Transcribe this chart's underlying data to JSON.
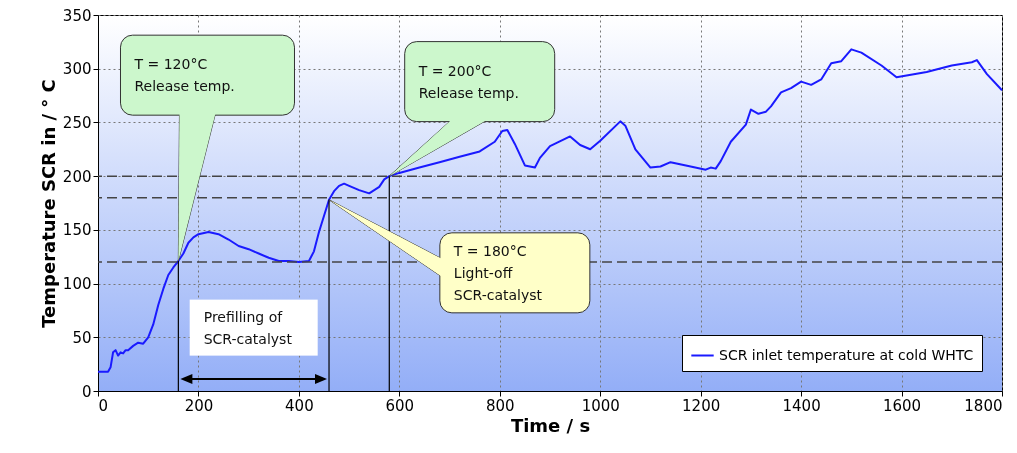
{
  "chart_data": {
    "type": "line",
    "xlabel": "Time / s",
    "ylabel": "Temperature SCR in / ° C",
    "xlim": [
      0,
      1800
    ],
    "xticks": [
      0,
      200,
      400,
      600,
      800,
      1000,
      1200,
      1400,
      1600,
      1800
    ],
    "ylim": [
      0,
      350
    ],
    "yticks": [
      0,
      50,
      100,
      150,
      200,
      250,
      300,
      350
    ],
    "grid": true,
    "legend": "bottom right",
    "marker": "none",
    "line_style": "solid",
    "series": [
      {
        "name": "SCR inlet temperature at cold WHTC",
        "color": "#1a1aff",
        "x": [
          0,
          20,
          25,
          30,
          35,
          40,
          45,
          50,
          55,
          60,
          70,
          80,
          90,
          100,
          110,
          120,
          130,
          140,
          150,
          160,
          170,
          180,
          190,
          200,
          220,
          240,
          260,
          280,
          300,
          320,
          340,
          360,
          380,
          400,
          420,
          430,
          440,
          460,
          470,
          480,
          490,
          500,
          520,
          540,
          560,
          570,
          580,
          600,
          640,
          680,
          720,
          760,
          790,
          805,
          815,
          830,
          850,
          870,
          880,
          900,
          940,
          960,
          980,
          1000,
          1040,
          1050,
          1070,
          1100,
          1120,
          1140,
          1180,
          1210,
          1220,
          1230,
          1240,
          1260,
          1290,
          1300,
          1315,
          1330,
          1340,
          1360,
          1380,
          1400,
          1420,
          1440,
          1460,
          1480,
          1500,
          1520,
          1560,
          1590,
          1650,
          1700,
          1740,
          1750,
          1770,
          1800
        ],
        "values": [
          18,
          18,
          22,
          36,
          38,
          33,
          36,
          35,
          38,
          38,
          42,
          45,
          44,
          50,
          62,
          80,
          95,
          108,
          115,
          121,
          128,
          138,
          143,
          146,
          148,
          146,
          141,
          135,
          132,
          128,
          124,
          121,
          121,
          120,
          121,
          130,
          148,
          178,
          186,
          191,
          193,
          191,
          187,
          184,
          190,
          197,
          200,
          203,
          208,
          213,
          218,
          223,
          232,
          242,
          243,
          230,
          210,
          208,
          217,
          228,
          237,
          229,
          225,
          233,
          251,
          247,
          225,
          208,
          209,
          213,
          209,
          206,
          208,
          207,
          214,
          232,
          248,
          262,
          258,
          260,
          265,
          278,
          282,
          288,
          285,
          290,
          305,
          307,
          318,
          315,
          303,
          292,
          297,
          303,
          306,
          308,
          295,
          280
        ]
      }
    ],
    "ref_lines": [
      {
        "axis": "y",
        "value": 120,
        "color": "#444444",
        "line_style": "dashed"
      },
      {
        "axis": "y",
        "value": 180,
        "color": "#444444",
        "line_style": "dashed"
      },
      {
        "axis": "y",
        "value": 200,
        "color": "#444444",
        "line_style": "dashed"
      },
      {
        "axis": "x",
        "value": 160,
        "color": "#000000",
        "line_style": "solid"
      },
      {
        "axis": "x",
        "value": 460,
        "color": "#000000",
        "line_style": "solid"
      },
      {
        "axis": "x",
        "value": 580,
        "color": "#000000",
        "line_style": "solid"
      }
    ],
    "annotations": [
      "T = 120°C\nRelease temp.",
      "T = 200°C\nRelease temp.",
      "T = 180°C\nLight-off\nSCR-catalyst",
      "Prefilling of\nSCR-catalyst"
    ]
  }
}
